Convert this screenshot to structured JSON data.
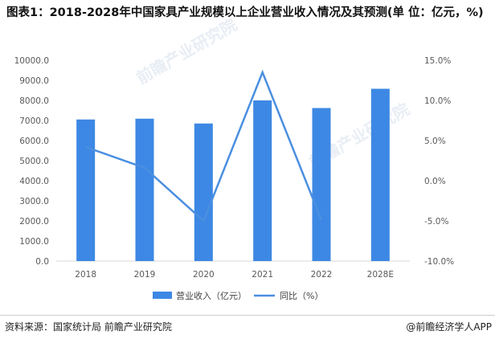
{
  "title": "图表1：2018-2028年中国家具产业规模以上企业营业收入情况及其预测(单 位：亿元，%)",
  "source": "资料来源：国家统计局 前瞻产业研究院",
  "brand": "@前瞻经济学人APP",
  "watermark": "前瞻产业研究院",
  "colors": {
    "bar": "#3d88e4",
    "line": "#4a8fe0",
    "grid": "#d9d9d9",
    "text": "#595959"
  },
  "chart_data": {
    "type": "bar",
    "categories": [
      "2018",
      "2019",
      "2020",
      "2021",
      "2022",
      "2028E"
    ],
    "series": [
      {
        "name": "营业收入（亿元）",
        "type": "bar",
        "axis": "left",
        "values": [
          7050,
          7090,
          6850,
          8000,
          7620,
          8580
        ]
      },
      {
        "name": "同比（%）",
        "type": "line",
        "axis": "right",
        "values": [
          4.2,
          1.6,
          -5.0,
          13.5,
          -4.9,
          null
        ]
      }
    ],
    "yleft": {
      "min": 0,
      "max": 10000,
      "step": 1000,
      "ticks": [
        "0.0",
        "1000.0",
        "2000.0",
        "3000.0",
        "4000.0",
        "5000.0",
        "6000.0",
        "7000.0",
        "8000.0",
        "9000.0",
        "10000.0"
      ]
    },
    "yright": {
      "min": -10,
      "max": 15,
      "step": 5,
      "ticks": [
        "-10.0%",
        "-5.0%",
        "0.0%",
        "5.0%",
        "10.0%",
        "15.0%"
      ]
    },
    "legend": {
      "position": "bottom"
    },
    "grid": false
  }
}
